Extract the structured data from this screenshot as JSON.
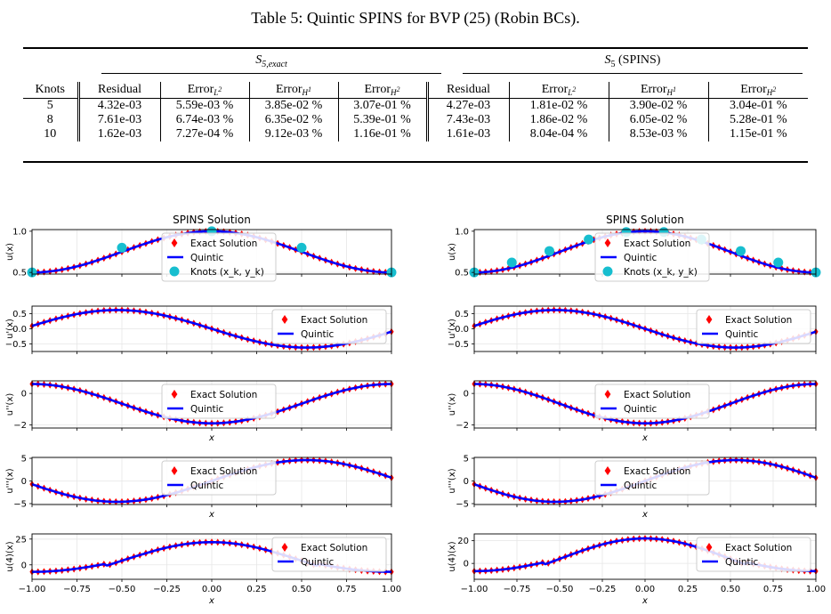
{
  "caption": "Table 5: Quintic SPINS for BVP (25) (Robin BCs).",
  "table": {
    "group_left": {
      "base": "S",
      "sub": "5,exact"
    },
    "group_right": {
      "base": "S",
      "sub": "5",
      "suffix": " (SPINS)"
    },
    "header": {
      "knots": "Knots",
      "residual": "Residual",
      "err_l2": "Error",
      "err_l2_sub": "L",
      "err_l2_sup": "2",
      "err_h1": "Error",
      "err_h1_sub": "H",
      "err_h1_sup": "1",
      "err_h2": "Error",
      "err_h2_sub": "H",
      "err_h2_sup": "2"
    },
    "rows": [
      {
        "knots": "5",
        "l": [
          "4.32e-03",
          "5.59e-03 %",
          "3.85e-02 %",
          "3.07e-01 %"
        ],
        "r": [
          "4.27e-03",
          "1.81e-02 %",
          "3.90e-02 %",
          "3.04e-01 %"
        ]
      },
      {
        "knots": "8",
        "l": [
          "7.61e-03",
          "6.74e-03 %",
          "6.35e-02 %",
          "5.39e-01 %"
        ],
        "r": [
          "7.43e-03",
          "1.86e-02 %",
          "6.05e-02 %",
          "5.28e-01 %"
        ]
      },
      {
        "knots": "10",
        "l": [
          "1.62e-03",
          "7.27e-04 %",
          "9.12e-03 %",
          "1.16e-01 %"
        ],
        "r": [
          "1.61e-03",
          "8.04e-04 %",
          "8.53e-03 %",
          "1.15e-01 %"
        ]
      }
    ]
  },
  "figures": {
    "title": "SPINS Solution",
    "legend_exact": "Exact Solution",
    "legend_quintic": "Quintic",
    "legend_knots": "Knots (x_k, y_k)",
    "xlabel": "x",
    "ylabels": [
      "u(x)",
      "u'(x)",
      "u''(x)",
      "u'''(x)",
      "u(4)(x)"
    ],
    "x_ticks": [
      "−1.00",
      "−0.75",
      "−0.50",
      "−0.25",
      "0.00",
      "0.25",
      "0.50",
      "0.75",
      "1.00"
    ],
    "colors": {
      "exact": "#ff0000",
      "quintic": "#0000ff",
      "knots": "#17becf"
    }
  },
  "chart_data": [
    {
      "type": "line",
      "title": "SPINS Solution",
      "knots": 5,
      "panels": [
        {
          "ylabel": "u(x)",
          "yticks": [
            "0.5",
            "1.0"
          ],
          "ylim": [
            0.48,
            1.02
          ],
          "legend": "center",
          "knots_x": [
            -1,
            -0.5,
            0,
            0.5,
            1
          ],
          "knots_y": [
            0.5,
            0.8,
            1.0,
            0.8,
            0.5
          ]
        },
        {
          "ylabel": "u'(x)",
          "yticks": [
            "0.5",
            "0.0",
            "−0.5"
          ],
          "ylim": [
            -0.75,
            0.75
          ],
          "legend": "right"
        },
        {
          "ylabel": "u''(x)",
          "yticks": [
            "0",
            "−2"
          ],
          "ylim": [
            -2.2,
            0.8
          ],
          "legend": "center"
        },
        {
          "ylabel": "u'''(x)",
          "yticks": [
            "5",
            "0",
            "−5"
          ],
          "ylim": [
            -5.2,
            5.2
          ],
          "legend": "center"
        },
        {
          "ylabel": "u(4)(x)",
          "yticks": [
            "25",
            "0"
          ],
          "ylim": [
            -14,
            30
          ],
          "legend": "right"
        }
      ]
    },
    {
      "type": "line",
      "title": "SPINS Solution",
      "knots": 10,
      "panels": [
        {
          "ylabel": "u(x)",
          "yticks": [
            "0.5",
            "1.0"
          ],
          "ylim": [
            0.48,
            1.02
          ],
          "legend": "center",
          "knots_x": [
            -1,
            -0.78,
            -0.56,
            -0.33,
            -0.11,
            0.11,
            0.33,
            0.56,
            0.78,
            1
          ],
          "knots_y": [
            0.5,
            0.62,
            0.76,
            0.9,
            0.99,
            0.99,
            0.9,
            0.76,
            0.62,
            0.5
          ]
        },
        {
          "ylabel": "u'(x)",
          "yticks": [
            "0.5",
            "0.0",
            "−0.5"
          ],
          "ylim": [
            -0.75,
            0.75
          ],
          "legend": "right"
        },
        {
          "ylabel": "u''(x)",
          "yticks": [
            "0",
            "−2"
          ],
          "ylim": [
            -2.2,
            0.8
          ],
          "legend": "center"
        },
        {
          "ylabel": "u'''(x)",
          "yticks": [
            "5",
            "0",
            "−5"
          ],
          "ylim": [
            -5.2,
            5.2
          ],
          "legend": "center"
        },
        {
          "ylabel": "u(4)(x)",
          "yticks": [
            "20",
            "0"
          ],
          "ylim": [
            -14,
            26
          ],
          "legend": "right"
        }
      ]
    }
  ]
}
